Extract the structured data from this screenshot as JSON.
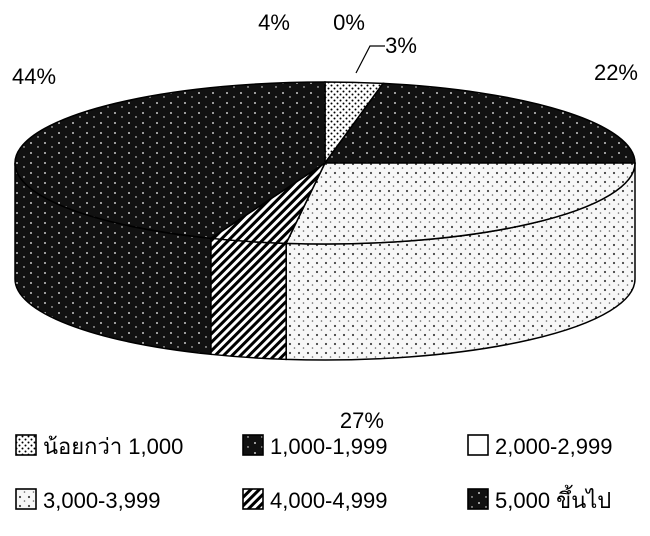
{
  "chart_data": {
    "type": "pie",
    "title": "",
    "style": "3d",
    "slices": [
      {
        "label": "น้อยกว่า 1,000",
        "value": 3,
        "display": "3%",
        "color": "#bdbdbd",
        "pattern": "dots"
      },
      {
        "label": "1,000-1,999",
        "value": 22,
        "display": "22%",
        "color": "#141414",
        "pattern": "dark-speckle"
      },
      {
        "label": "2,000-2,999",
        "value": 0,
        "display": "0%",
        "color": "#ffffff",
        "pattern": "none"
      },
      {
        "label": "3,000-3,999",
        "value": 27,
        "display": "27%",
        "color": "#f4f4f4",
        "pattern": "light-speckle"
      },
      {
        "label": "4,000-4,999",
        "value": 4,
        "display": "4%",
        "color": "#9a9a9a",
        "pattern": "hatch"
      },
      {
        "label": "5,000 ขึ้นไป",
        "value": 44,
        "display": "44%",
        "color": "#0c0c0c",
        "pattern": "dark-speckle"
      }
    ],
    "legend_position": "bottom",
    "legend_rows": [
      [
        0,
        1,
        2
      ],
      [
        3,
        4,
        5
      ]
    ]
  }
}
